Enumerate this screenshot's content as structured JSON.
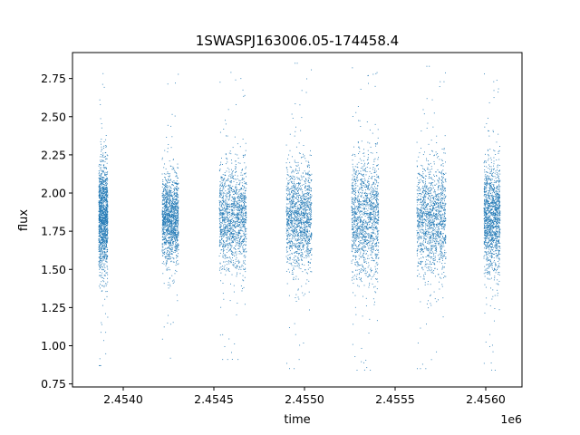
{
  "chart_data": {
    "type": "scatter",
    "title": "1SWASPJ163006.05-174458.4",
    "xlabel": "time",
    "ylabel": "flux",
    "x_offset_label": "1e6",
    "xlim": [
      2453720,
      2456200
    ],
    "ylim": [
      0.73,
      2.92
    ],
    "xticks": [
      2.454,
      2.4545,
      2.455,
      2.4555,
      2.456
    ],
    "xtick_labels": [
      "2.4540",
      "2.4545",
      "2.4550",
      "2.4555",
      "2.4560"
    ],
    "yticks": [
      0.75,
      1.0,
      1.25,
      1.5,
      1.75,
      2.0,
      2.25,
      2.5,
      2.75
    ],
    "ytick_labels": [
      "0.75",
      "1.00",
      "1.25",
      "1.50",
      "1.75",
      "2.00",
      "2.25",
      "2.50",
      "2.75"
    ],
    "grid": false,
    "marker_color": "#1f77b4",
    "observing_seasons": [
      {
        "start": 2453865,
        "end": 2453915,
        "center_flux": 1.84,
        "spread": 0.17,
        "min_flux": 0.87,
        "max_flux": 2.84
      },
      {
        "start": 2454215,
        "end": 2454305,
        "center_flux": 1.83,
        "spread": 0.14,
        "min_flux": 0.86,
        "max_flux": 2.82
      },
      {
        "start": 2454530,
        "end": 2454680,
        "center_flux": 1.84,
        "spread": 0.16,
        "min_flux": 0.91,
        "max_flux": 2.79
      },
      {
        "start": 2454900,
        "end": 2455040,
        "center_flux": 1.84,
        "spread": 0.17,
        "min_flux": 0.85,
        "max_flux": 2.85
      },
      {
        "start": 2455260,
        "end": 2455410,
        "center_flux": 1.84,
        "spread": 0.19,
        "min_flux": 0.84,
        "max_flux": 2.82
      },
      {
        "start": 2455620,
        "end": 2455780,
        "center_flux": 1.83,
        "spread": 0.18,
        "min_flux": 0.85,
        "max_flux": 2.83
      },
      {
        "start": 2455990,
        "end": 2456080,
        "center_flux": 1.84,
        "spread": 0.17,
        "min_flux": 0.84,
        "max_flux": 2.78
      }
    ]
  }
}
